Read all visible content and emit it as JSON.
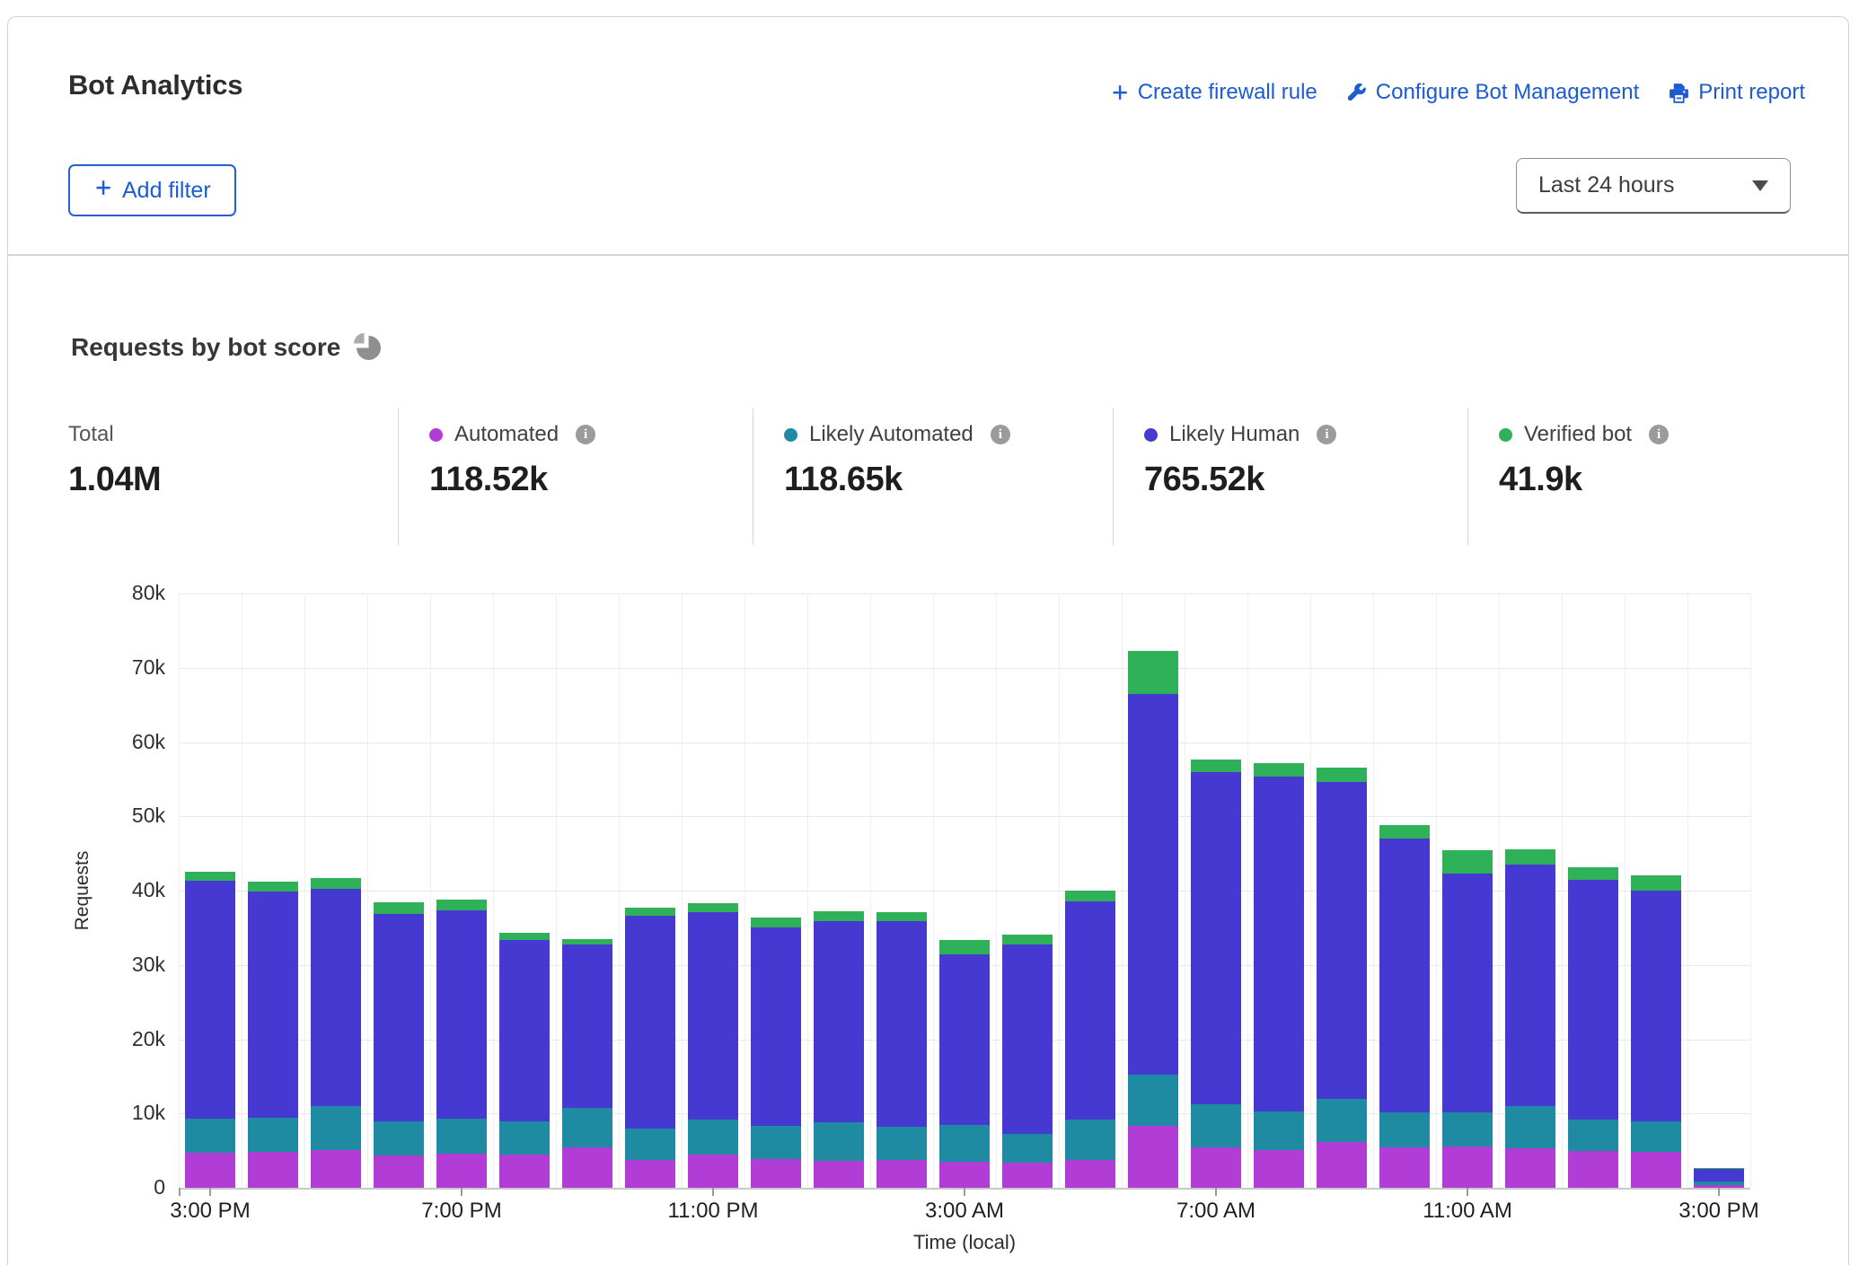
{
  "header": {
    "title": "Bot Analytics",
    "add_filter_label": "Add filter",
    "time_range_value": "Last 24 hours",
    "actions": [
      {
        "id": "create-firewall-rule",
        "icon": "plus-icon",
        "label": "Create firewall rule"
      },
      {
        "id": "configure-bot-management",
        "icon": "wrench-icon",
        "label": "Configure Bot Management"
      },
      {
        "id": "print-report",
        "icon": "printer-icon",
        "label": "Print report"
      }
    ],
    "link_color": "#1d5bd2"
  },
  "section": {
    "heading": "Requests by bot score"
  },
  "stats": [
    {
      "label": "Total",
      "value": "1.04M",
      "dot": null,
      "info": false
    },
    {
      "label": "Automated",
      "value": "118.52k",
      "dot": "#b13cd6",
      "info": true
    },
    {
      "label": "Likely Automated",
      "value": "118.65k",
      "dot": "#1f8ba3",
      "info": true
    },
    {
      "label": "Likely Human",
      "value": "765.52k",
      "dot": "#4639d2",
      "info": true
    },
    {
      "label": "Verified bot",
      "value": "41.9k",
      "dot": "#2eb158",
      "info": true
    }
  ],
  "chart_data": {
    "type": "bar",
    "stacked": true,
    "title": "Requests by bot score",
    "ylabel": "Requests",
    "xlabel": "Time (local)",
    "ylim": [
      0,
      80000
    ],
    "ytick_labels": [
      "0",
      "10k",
      "20k",
      "30k",
      "40k",
      "50k",
      "60k",
      "70k",
      "80k"
    ],
    "grid": true,
    "categories": [
      "3:00 PM",
      "4:00 PM",
      "5:00 PM",
      "6:00 PM",
      "7:00 PM",
      "8:00 PM",
      "9:00 PM",
      "10:00 PM",
      "11:00 PM",
      "12:00 AM",
      "1:00 AM",
      "2:00 AM",
      "3:00 AM",
      "4:00 AM",
      "5:00 AM",
      "6:00 AM",
      "7:00 AM",
      "8:00 AM",
      "9:00 AM",
      "10:00 AM",
      "11:00 AM",
      "12:00 PM",
      "1:00 PM",
      "2:00 PM",
      "3:00 PM"
    ],
    "xticks_shown": [
      {
        "index": 0,
        "label": "3:00 PM"
      },
      {
        "index": 4,
        "label": "7:00 PM"
      },
      {
        "index": 8,
        "label": "11:00 PM"
      },
      {
        "index": 12,
        "label": "3:00 AM"
      },
      {
        "index": 16,
        "label": "7:00 AM"
      },
      {
        "index": 20,
        "label": "11:00 AM"
      },
      {
        "index": 24,
        "label": "3:00 PM"
      }
    ],
    "series": [
      {
        "name": "Automated",
        "color": "#b13cd6",
        "values": [
          4700,
          4800,
          5100,
          4400,
          4600,
          4500,
          5400,
          3700,
          4500,
          3900,
          3600,
          3800,
          3500,
          3400,
          3800,
          8300,
          5400,
          5100,
          6200,
          5500,
          5600,
          5300,
          4900,
          4800,
          400
        ]
      },
      {
        "name": "Likely Automated",
        "color": "#1f8ba3",
        "values": [
          4600,
          4600,
          5900,
          4600,
          4700,
          4400,
          5300,
          4300,
          4700,
          4400,
          5200,
          4400,
          5000,
          3800,
          5400,
          6900,
          5900,
          5200,
          5800,
          4700,
          4500,
          5700,
          4300,
          4100,
          500
        ]
      },
      {
        "name": "Likely Human",
        "color": "#4639d2",
        "values": [
          32000,
          30500,
          29200,
          27900,
          28000,
          24400,
          22000,
          28600,
          27900,
          26700,
          27100,
          27700,
          22900,
          25500,
          29400,
          51300,
          44700,
          45100,
          42600,
          36800,
          32200,
          32500,
          32200,
          31100,
          1600
        ]
      },
      {
        "name": "Verified bot",
        "color": "#2eb158",
        "values": [
          1300,
          1300,
          1500,
          1500,
          1500,
          1000,
          800,
          1100,
          1200,
          1400,
          1300,
          1200,
          1900,
          1400,
          1400,
          5800,
          1700,
          1800,
          1900,
          1800,
          3100,
          2100,
          1800,
          2100,
          100
        ]
      }
    ],
    "legend_position": "top"
  }
}
